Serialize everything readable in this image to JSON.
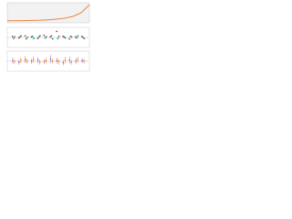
{
  "chart_data": [
    {
      "type": "line",
      "xlim": [
        0,
        100
      ],
      "ylim": [
        0,
        10
      ],
      "x": [
        0,
        10,
        20,
        30,
        40,
        50,
        60,
        70,
        80,
        90,
        100
      ],
      "series": [
        {
          "color": "#e8833a",
          "values": [
            1,
            1,
            1.1,
            1.2,
            1.3,
            1.5,
            1.8,
            2.3,
            3.2,
            5,
            9
          ]
        }
      ]
    },
    {
      "type": "scatter",
      "xlim": [
        0,
        13
      ],
      "ylim": [
        -2,
        2
      ],
      "x": [
        1,
        2,
        3,
        4,
        5,
        6,
        7,
        8,
        9,
        10,
        11,
        12
      ],
      "series": [
        {
          "color": "#d62728",
          "values": [
            0.2,
            -0.1,
            0.3,
            0.1,
            -0.2,
            0.4,
            0.1,
            1.2,
            0.2,
            -0.3,
            0.1,
            0.2
          ]
        },
        {
          "color": "#2ca02c",
          "values": [
            -0.2,
            0.1,
            -0.3,
            0.2,
            0.1,
            -0.1,
            0.3,
            -0.2,
            0.1,
            0.2,
            -0.1,
            0
          ]
        },
        {
          "color": "#1f77b4",
          "values": [
            0.1,
            0.3,
            0,
            -0.2,
            0.3,
            0.1,
            -0.3,
            0.2,
            -0.1,
            0.1,
            0.3,
            -0.2
          ]
        }
      ]
    },
    {
      "type": "errorbar",
      "xlim": [
        0,
        13
      ],
      "ylim": [
        -2,
        2
      ],
      "x": [
        1,
        2,
        3,
        4,
        5,
        6,
        7,
        8,
        9,
        10,
        11,
        12
      ],
      "series": [
        {
          "color": "#9467bd",
          "values": [
            0.1,
            -0.2,
            0.3,
            0,
            0.2,
            -0.1,
            0.4,
            0.1,
            -0.3,
            0.2,
            0,
            0.1
          ],
          "errors": [
            0.6,
            0.5,
            0.7,
            0.5,
            0.6,
            0.5,
            0.8,
            0.6,
            0.5,
            0.7,
            0.6,
            0.5
          ]
        },
        {
          "color": "#ff7f0e",
          "values": [
            -0.1,
            0.2,
            0,
            0.3,
            -0.2,
            0.1,
            0,
            -0.1,
            0.2,
            -0.2,
            0.3,
            0
          ],
          "errors": [
            0.5,
            0.6,
            0.5,
            0.7,
            0.5,
            0.6,
            0.5,
            0.6,
            0.7,
            0.5,
            0.6,
            0.5
          ]
        }
      ]
    }
  ]
}
